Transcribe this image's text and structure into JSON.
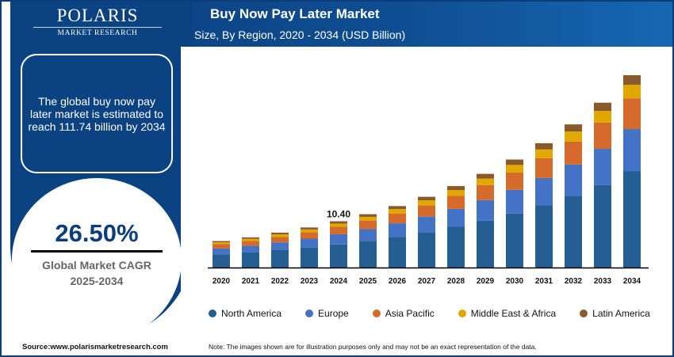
{
  "brand": {
    "name": "POLARIS",
    "sub": "MARKET RESEARCH"
  },
  "header": {
    "title": "Buy Now Pay Later Market",
    "subtitle": "Size, By Region, 2020 - 2034 (USD Billion)"
  },
  "info": {
    "text": "The global buy now pay later market is estimated to reach 111.74 billion by 2034"
  },
  "cagr": {
    "value": "26.50%",
    "label": "Global Market CAGR",
    "period": "2025-2034"
  },
  "footer": {
    "source": "Source:www.polarismarketresearch.com",
    "note": "Note: The images shown are for illustration purposes only and may not be an exact representation of the data."
  },
  "chart_data": {
    "type": "bar",
    "stacked": true,
    "title": "Buy Now Pay Later Market",
    "subtitle": "Size, By Region, 2020 - 2034 (USD Billion)",
    "categories": [
      "2020",
      "2021",
      "2022",
      "2023",
      "2024",
      "2025",
      "2026",
      "2027",
      "2028",
      "2029",
      "2030",
      "2031",
      "2032",
      "2033",
      "2034"
    ],
    "annotations": [
      {
        "category": "2024",
        "label": "10.40"
      }
    ],
    "legend_position": "bottom",
    "grid": false,
    "series": [
      {
        "name": "North America",
        "color": "#245e93",
        "values": [
          2.05,
          2.55,
          3.25,
          4.1,
          5.2,
          6.6,
          8.35,
          10.55,
          13.35,
          16.85,
          21.35,
          27.0,
          34.15,
          43.2,
          55.87
        ]
      },
      {
        "name": "Europe",
        "color": "#4472c4",
        "values": [
          0.9,
          1.12,
          1.43,
          1.8,
          2.29,
          2.9,
          3.67,
          4.64,
          5.87,
          7.41,
          9.39,
          11.88,
          15.03,
          19.01,
          24.58
        ]
      },
      {
        "name": "Asia Pacific",
        "color": "#d46b2a",
        "values": [
          0.66,
          0.82,
          1.04,
          1.31,
          1.66,
          2.11,
          2.67,
          3.38,
          4.27,
          5.39,
          6.83,
          8.64,
          10.93,
          13.82,
          17.88
        ]
      },
      {
        "name": "Middle East & Africa",
        "color": "#e3a800",
        "values": [
          0.29,
          0.36,
          0.46,
          0.57,
          0.73,
          0.92,
          1.17,
          1.48,
          1.87,
          2.36,
          2.99,
          3.78,
          4.78,
          6.05,
          7.82
        ]
      },
      {
        "name": "Latin America",
        "color": "#8b5a2b",
        "values": [
          0.2,
          0.25,
          0.32,
          0.41,
          0.52,
          0.66,
          0.84,
          1.05,
          1.34,
          1.69,
          2.14,
          2.7,
          3.41,
          4.32,
          5.59
        ]
      }
    ]
  }
}
